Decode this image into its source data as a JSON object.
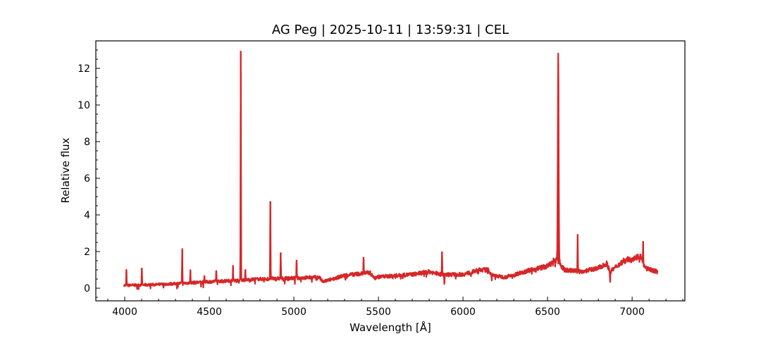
{
  "chart_data": {
    "type": "line",
    "title": "AG Peg | 2025-10-11 | 13:59:31 | CEL",
    "xlabel": "Wavelength [Å]",
    "ylabel": "Relative flux",
    "xlim": [
      3829,
      7312
    ],
    "ylim": [
      -0.69,
      13.5
    ],
    "xticks": [
      4000,
      4500,
      5000,
      5500,
      6000,
      6500,
      7000
    ],
    "yticks": [
      0,
      2,
      4,
      6,
      8,
      10,
      12
    ],
    "grid": false,
    "color": "#d62728",
    "series": [
      {
        "continuum": [
          [
            4000,
            0.15
          ],
          [
            4200,
            0.2
          ],
          [
            4400,
            0.3
          ],
          [
            4600,
            0.4
          ],
          [
            4800,
            0.5
          ],
          [
            5000,
            0.55
          ],
          [
            5150,
            0.6
          ],
          [
            5170,
            0.35
          ],
          [
            5300,
            0.7
          ],
          [
            5450,
            0.85
          ],
          [
            5470,
            0.6
          ],
          [
            5700,
            0.75
          ],
          [
            5800,
            0.9
          ],
          [
            5870,
            0.75
          ],
          [
            6000,
            0.75
          ],
          [
            6100,
            1.0
          ],
          [
            6150,
            1.0
          ],
          [
            6170,
            0.7
          ],
          [
            6250,
            0.6
          ],
          [
            6400,
            1.0
          ],
          [
            6500,
            1.2
          ],
          [
            6540,
            1.5
          ],
          [
            6600,
            1.0
          ],
          [
            6700,
            0.9
          ],
          [
            6800,
            1.1
          ],
          [
            6850,
            1.35
          ],
          [
            6870,
            0.9
          ],
          [
            6950,
            1.5
          ],
          [
            7050,
            1.75
          ],
          [
            7075,
            1.1
          ],
          [
            7150,
            0.9
          ]
        ],
        "emission_lines": [
          [
            4010,
            0.95
          ],
          [
            4101,
            1.1
          ],
          [
            4340,
            2.1
          ],
          [
            4388,
            0.95
          ],
          [
            4471,
            0.7
          ],
          [
            4541,
            0.95
          ],
          [
            4640,
            1.2
          ],
          [
            4686,
            12.95
          ],
          [
            4713,
            1.0
          ],
          [
            4861,
            4.75
          ],
          [
            4922,
            1.95
          ],
          [
            5016,
            1.55
          ],
          [
            5412,
            1.7
          ],
          [
            5876,
            2.0
          ],
          [
            6563,
            12.3
          ],
          [
            6678,
            2.95
          ],
          [
            7065,
            2.55
          ]
        ],
        "absorption_lines": [
          [
            5890,
            0.15
          ],
          [
            6870,
            0.4
          ]
        ]
      }
    ]
  }
}
